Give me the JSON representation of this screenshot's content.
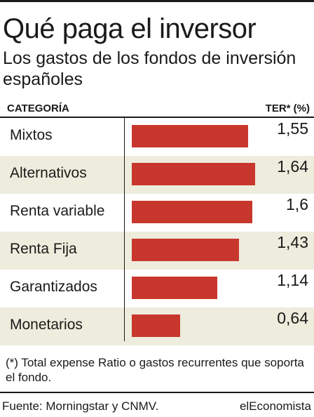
{
  "header": {
    "title": "Qué paga el inversor",
    "subtitle": "Los gastos de los fondos de inversión españoles"
  },
  "table": {
    "category_header": "CATEGORÍA",
    "value_header": "TER* (%)"
  },
  "chart_data": {
    "type": "bar",
    "orientation": "horizontal",
    "categories": [
      "Mixtos",
      "Alternativos",
      "Renta variable",
      "Renta Fija",
      "Garantizados",
      "Monetarios"
    ],
    "values": [
      1.55,
      1.64,
      1.6,
      1.43,
      1.14,
      0.64
    ],
    "value_labels": [
      "1,55",
      "1,64",
      "1,6",
      "1,43",
      "1,14",
      "0,64"
    ],
    "title": "Qué paga el inversor",
    "xlabel": "TER* (%)",
    "ylabel": "CATEGORÍA",
    "xlim": [
      0,
      1.64
    ],
    "grid": false,
    "bar_color": "#c8372d",
    "row_alt_color": "#eeecdc"
  },
  "footnote": "(*) Total expense Ratio o gastos recurrentes que soporta el fondo.",
  "footer": {
    "source": "Fuente: Morningstar y CNMV.",
    "brand": "elEconomista"
  }
}
